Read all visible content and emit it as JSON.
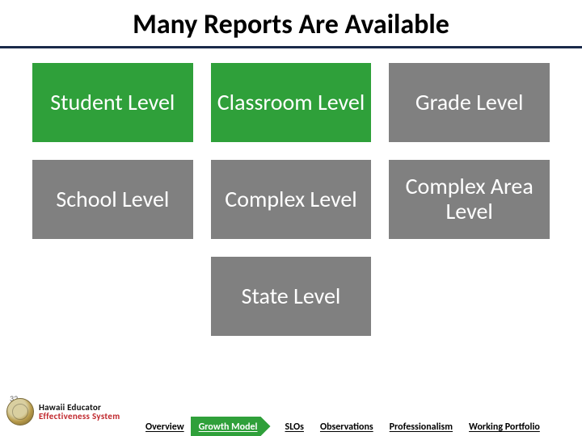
{
  "title": "Many Reports Are Available",
  "colors": {
    "green": "#2fa03a",
    "grey": "#808080",
    "title_underline": "#1a2a4a",
    "logo_red": "#c0282d"
  },
  "tiles": {
    "row1": [
      {
        "label": "Student Level",
        "style": "green"
      },
      {
        "label": "Classroom Level",
        "style": "green"
      },
      {
        "label": "Grade Level",
        "style": "grey"
      }
    ],
    "row2": [
      {
        "label": "School Level",
        "style": "grey"
      },
      {
        "label": "Complex Level",
        "style": "grey"
      },
      {
        "label": "Complex Area Level",
        "style": "grey"
      }
    ],
    "row3": [
      {
        "label": "",
        "style": "spacer"
      },
      {
        "label": "State Level",
        "style": "grey"
      },
      {
        "label": "",
        "style": "spacer"
      }
    ]
  },
  "footer": {
    "slide_number": "32",
    "logo_line1": "Hawaii Educator",
    "logo_line2": "Effectiveness System",
    "nav": [
      {
        "label": "Overview",
        "active": false
      },
      {
        "label": "Growth Model",
        "active": true
      },
      {
        "label": "SLOs",
        "active": false
      },
      {
        "label": "Observations",
        "active": false
      },
      {
        "label": "Professionalism",
        "active": false
      },
      {
        "label": "Working Portfolio",
        "active": false
      }
    ]
  }
}
